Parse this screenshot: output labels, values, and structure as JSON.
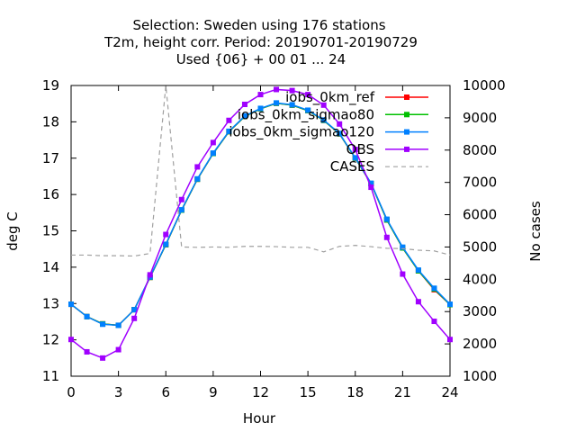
{
  "chart_data": {
    "type": "line",
    "title_lines": [
      "Selection: Sweden using   176 stations",
      "T2m, height corr.   Period: 20190701-20190729",
      "Used {06} + 00 01 ... 24"
    ],
    "xlabel": "Hour",
    "ylabel": "deg C",
    "y2label": "No cases",
    "xlim": [
      0,
      24
    ],
    "ylim": [
      11,
      19
    ],
    "y2lim": [
      1000,
      10000
    ],
    "xticks": [
      "0",
      "3",
      "6",
      "9",
      "12",
      "15",
      "18",
      "21",
      "24"
    ],
    "yticks": [
      "11",
      "12",
      "13",
      "14",
      "15",
      "16",
      "17",
      "18",
      "19"
    ],
    "y2ticks": [
      "1000",
      "2000",
      "3000",
      "4000",
      "5000",
      "6000",
      "7000",
      "8000",
      "9000",
      "10000"
    ],
    "legend_position": "top-right",
    "x": [
      0,
      1,
      2,
      3,
      4,
      5,
      6,
      7,
      8,
      9,
      10,
      11,
      12,
      13,
      14,
      15,
      16,
      17,
      18,
      19,
      20,
      21,
      22,
      23,
      24
    ],
    "series": [
      {
        "name": "iobs_0km_ref",
        "color": "#ff0000",
        "axis": "y",
        "marker": "square",
        "values": [
          12.98,
          12.64,
          12.44,
          12.4,
          12.83,
          13.72,
          14.62,
          15.57,
          16.42,
          17.13,
          17.73,
          18.15,
          18.36,
          18.51,
          18.46,
          18.31,
          18.04,
          17.67,
          17.0,
          16.3,
          15.3,
          14.53,
          13.9,
          13.38,
          12.97
        ],
        "dashed": false
      },
      {
        "name": "iobs_0km_sigmao80",
        "color": "#00c000",
        "axis": "y",
        "marker": "square",
        "values": [
          12.98,
          12.64,
          12.44,
          12.4,
          12.83,
          13.72,
          14.62,
          15.57,
          16.42,
          17.13,
          17.73,
          18.15,
          18.36,
          18.51,
          18.46,
          18.31,
          18.04,
          17.67,
          17.0,
          16.3,
          15.3,
          14.53,
          13.9,
          13.4,
          12.97
        ],
        "dashed": false
      },
      {
        "name": "iobs_0km_sigmao120",
        "color": "#0080ff",
        "axis": "y",
        "marker": "square",
        "values": [
          12.98,
          12.64,
          12.43,
          12.4,
          12.83,
          13.73,
          14.63,
          15.58,
          16.43,
          17.14,
          17.74,
          18.16,
          18.37,
          18.52,
          18.47,
          18.32,
          18.05,
          17.68,
          17.01,
          16.31,
          15.32,
          14.55,
          13.92,
          13.42,
          12.98
        ],
        "dashed": false
      },
      {
        "name": "OBS",
        "color": "#a000ff",
        "axis": "y",
        "marker": "square",
        "values": [
          12.01,
          11.67,
          11.5,
          11.73,
          12.59,
          13.79,
          14.9,
          15.86,
          16.76,
          17.43,
          18.04,
          18.48,
          18.75,
          18.89,
          18.86,
          18.75,
          18.46,
          17.94,
          17.24,
          16.2,
          14.82,
          13.81,
          13.05,
          12.51,
          12.01
        ],
        "dashed": false
      },
      {
        "name": "CASES",
        "color": "#a0a0a0",
        "axis": "y2",
        "marker": "none",
        "values": [
          4750,
          4750,
          4730,
          4730,
          4720,
          4800,
          10000,
          5000,
          4990,
          5000,
          4990,
          5020,
          5020,
          5010,
          4990,
          4990,
          4850,
          5020,
          5050,
          5010,
          4960,
          4950,
          4900,
          4880,
          4750
        ],
        "dashed": true
      }
    ]
  }
}
